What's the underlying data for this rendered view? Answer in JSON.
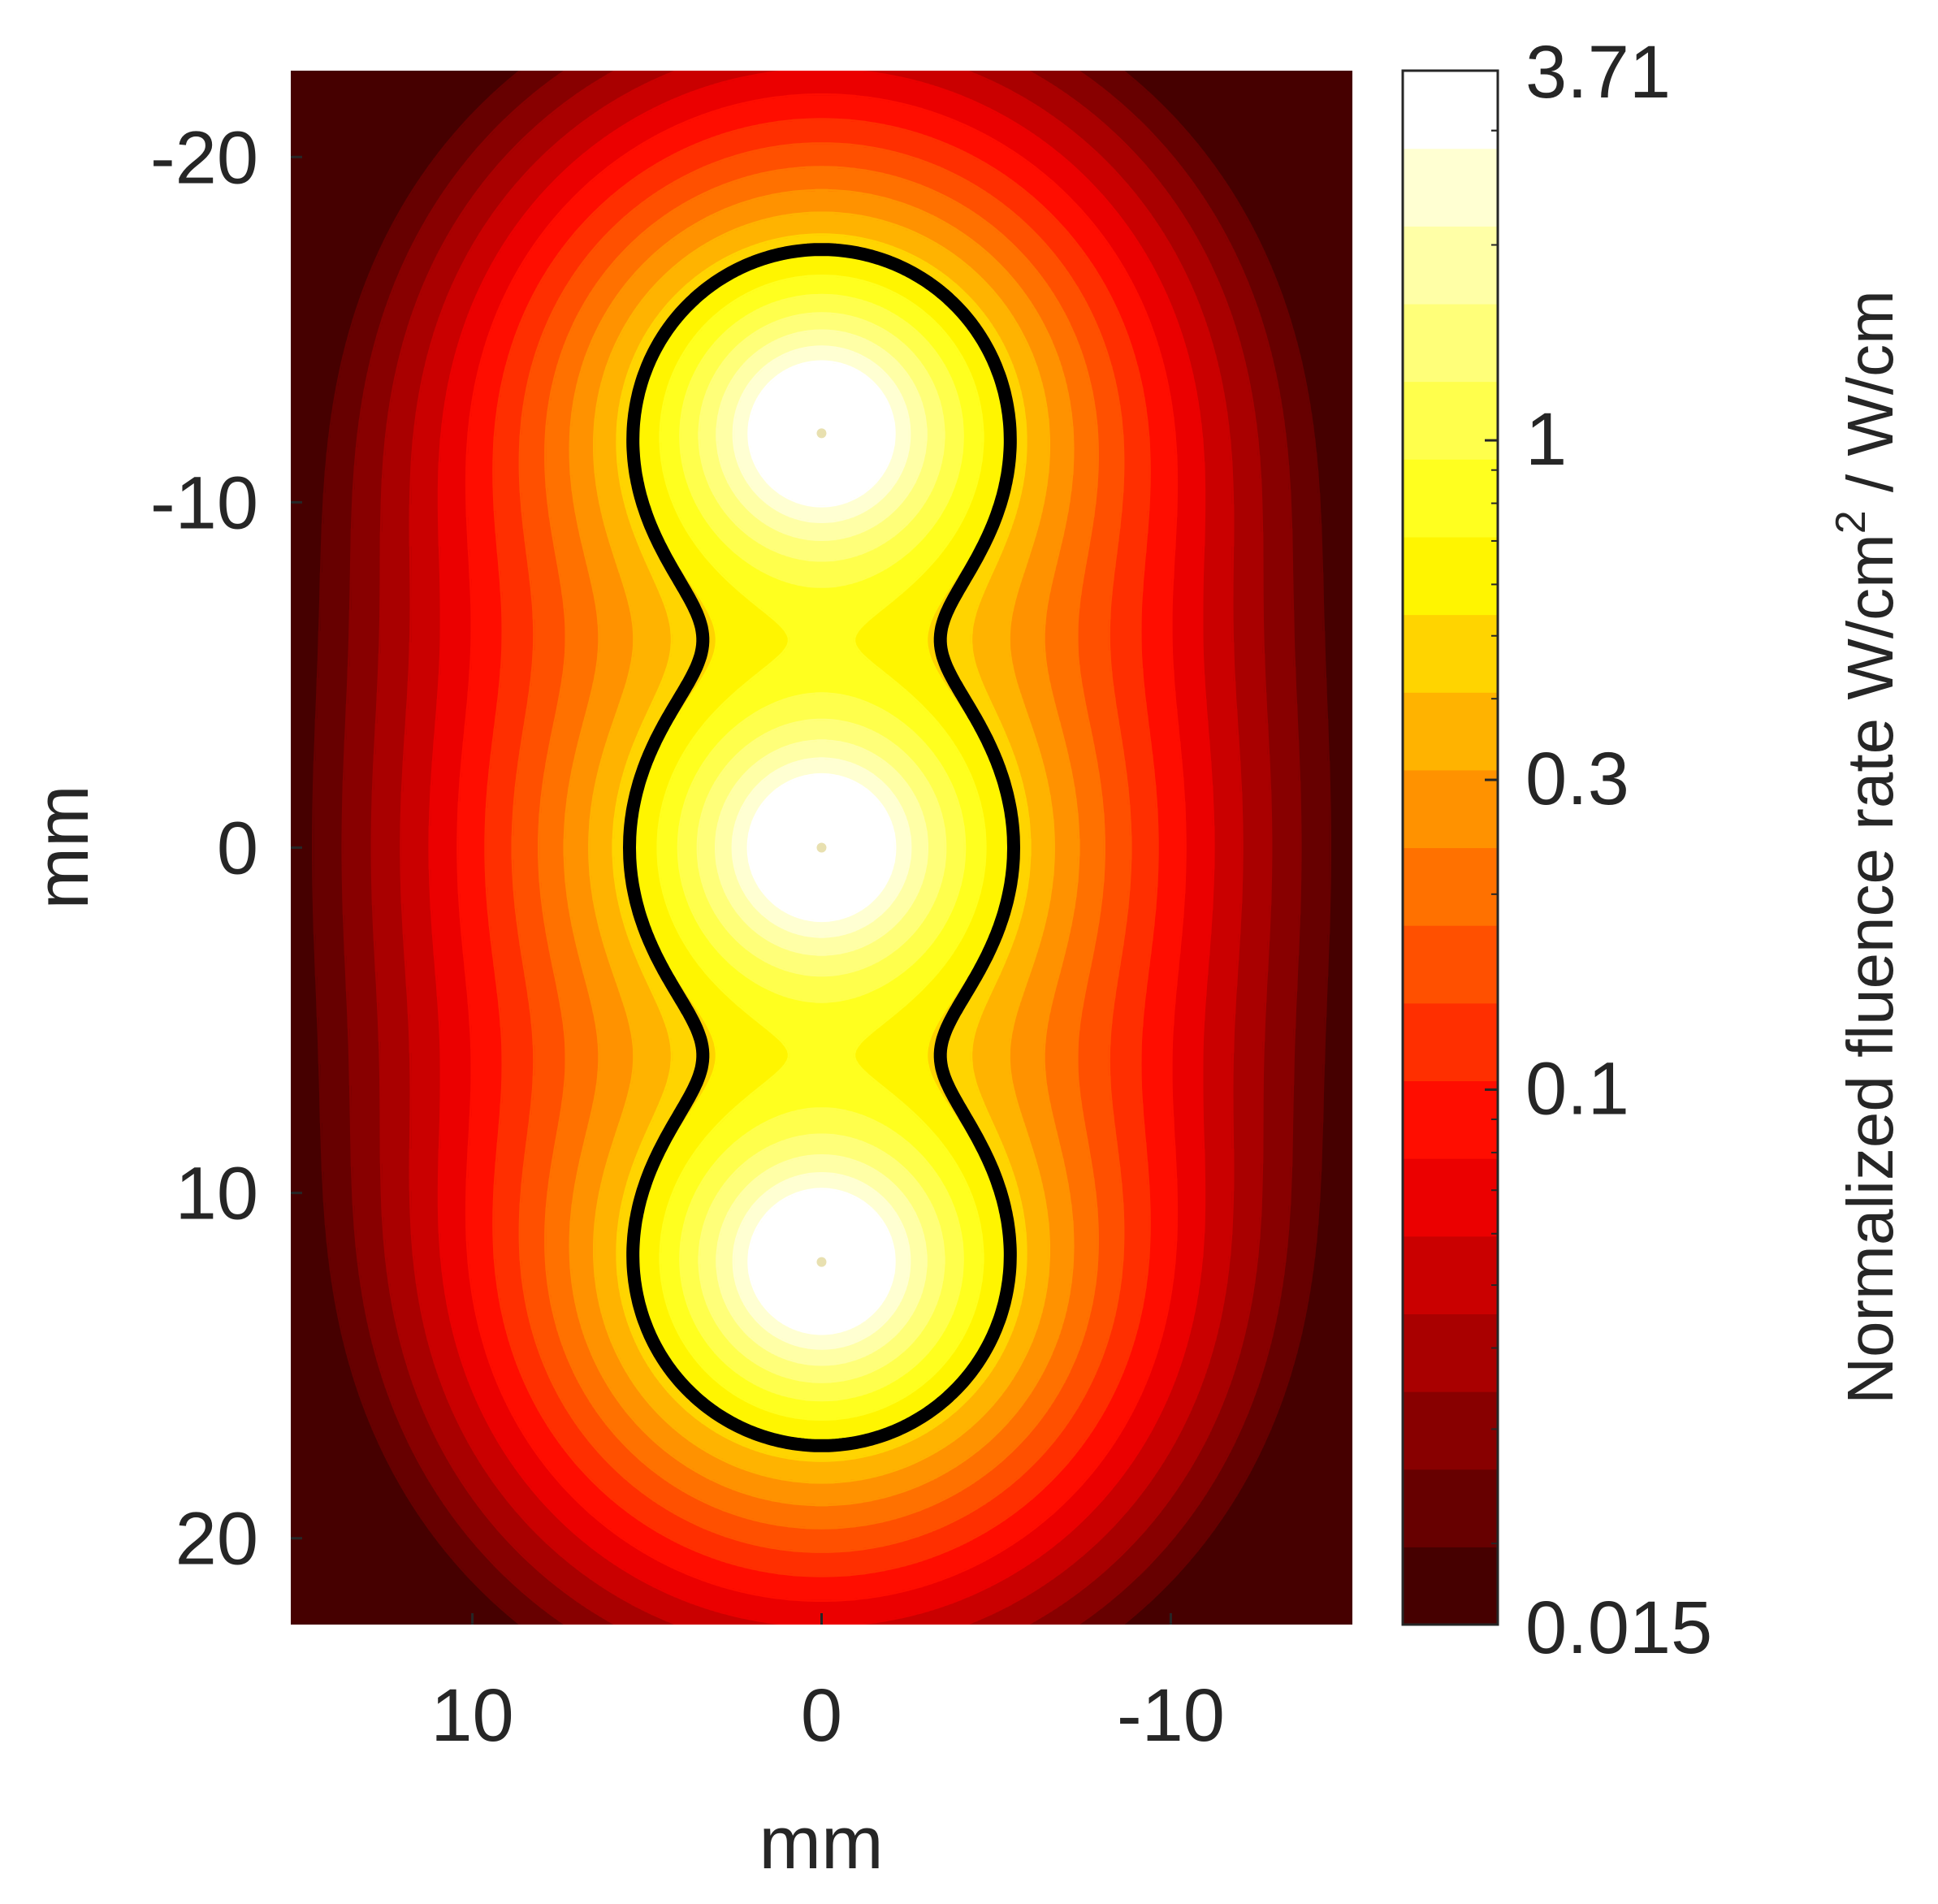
{
  "chart_data": {
    "type": "heatmap",
    "title": "",
    "xlabel": "mm",
    "ylabel": "mm",
    "xlim": [
      15.2,
      -15.2
    ],
    "ylim": [
      -22.5,
      22.5
    ],
    "x_axis_reversed": true,
    "y_axis_reversed": true,
    "x_ticks": [
      10,
      0,
      -10
    ],
    "x_tick_labels": [
      "10",
      "0",
      "-10"
    ],
    "y_ticks": [
      -20,
      -10,
      0,
      10,
      20
    ],
    "y_tick_labels": [
      "-20",
      "-10",
      "0",
      "10",
      "20"
    ],
    "sources": [
      {
        "x": 0,
        "y": -12
      },
      {
        "x": 0,
        "y": 0
      },
      {
        "x": 0,
        "y": 12
      }
    ],
    "contour_levels": 20,
    "highlighted_contour_level": 0.5,
    "colormap": "hot",
    "grid": false,
    "colorbar": {
      "scale": "log",
      "min": 0.015,
      "max": 3.71,
      "ticks": [
        3.71,
        1,
        0.3,
        0.1,
        0.015
      ],
      "tick_labels": [
        "3.71",
        "1",
        "0.3",
        "0.1",
        "0.015"
      ],
      "label_main": "Normalized fluence rate W/cm",
      "label_sup": "2",
      "label_tail": " / W/cm"
    }
  }
}
